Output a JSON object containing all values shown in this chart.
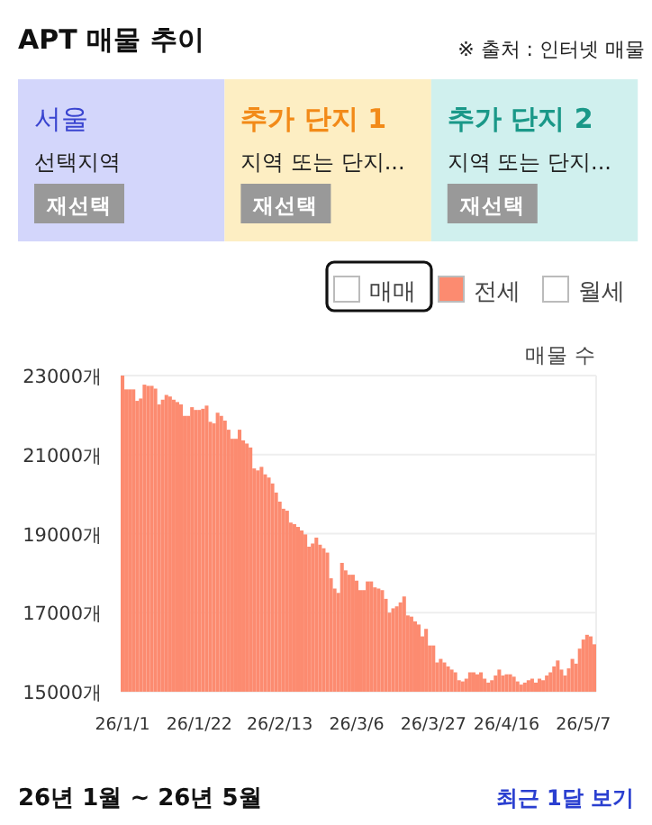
{
  "chart_data": {
    "type": "bar",
    "title": "APT 매물 추이",
    "ylabel": "매물 수",
    "annotations": [
      "※ 출처 : 인터넷 매물",
      "서울",
      "선택지역",
      "재선택",
      "추가 단지 1",
      "지역 또는 단지...",
      "재선택",
      "추가 단지 2",
      "지역 또는 단지...",
      "재선택",
      "매매",
      "월세",
      "26년 1월 ~ 26년 5월",
      "최근 1달 보기"
    ],
    "categories": [
      "26/1/1",
      null,
      null,
      null,
      null,
      null,
      null,
      null,
      null,
      null,
      null,
      null,
      null,
      null,
      null,
      null,
      null,
      null,
      null,
      null,
      null,
      "26/1/22",
      null,
      null,
      null,
      null,
      null,
      null,
      null,
      null,
      null,
      null,
      null,
      null,
      null,
      null,
      null,
      null,
      null,
      null,
      null,
      null,
      null,
      "26/2/13",
      null,
      null,
      null,
      null,
      null,
      null,
      null,
      null,
      null,
      null,
      null,
      null,
      null,
      null,
      null,
      null,
      null,
      null,
      null,
      null,
      "26/3/6",
      null,
      null,
      null,
      null,
      null,
      null,
      null,
      null,
      null,
      null,
      null,
      null,
      null,
      null,
      null,
      null,
      null,
      null,
      null,
      null,
      "26/3/27",
      null,
      null,
      null,
      null,
      null,
      null,
      null,
      null,
      null,
      null,
      null,
      null,
      null,
      null,
      null,
      null,
      null,
      null,
      null,
      "26/4/16",
      null,
      null,
      null,
      null,
      null,
      null,
      null,
      null,
      null,
      null,
      null,
      null,
      null,
      null,
      null,
      null,
      null,
      null,
      null,
      null,
      "26/5/7",
      null,
      null,
      null
    ],
    "series": [
      {
        "name": "전세",
        "color": "#fc8b70",
        "values": [
          23000,
          22650,
          22650,
          22650,
          22360,
          22420,
          22770,
          22740,
          22740,
          22670,
          22270,
          22390,
          22510,
          22470,
          22390,
          22330,
          22270,
          21980,
          21980,
          22200,
          22130,
          22130,
          22160,
          22240,
          21830,
          21790,
          22060,
          21980,
          21860,
          21630,
          21400,
          21400,
          21630,
          21360,
          21280,
          21180,
          20650,
          20600,
          20690,
          20500,
          20420,
          20270,
          20040,
          19810,
          19630,
          19580,
          19280,
          19240,
          19170,
          19080,
          18980,
          18670,
          18750,
          18900,
          18720,
          18630,
          18520,
          17870,
          17610,
          17500,
          18260,
          18070,
          17960,
          17960,
          17810,
          17570,
          17570,
          17790,
          17790,
          17640,
          17610,
          17570,
          17350,
          17000,
          17110,
          17160,
          17260,
          17410,
          16930,
          16900,
          16780,
          16700,
          16400,
          16590,
          16170,
          16170,
          15740,
          15830,
          15740,
          15640,
          15560,
          15490,
          15290,
          15260,
          15330,
          15490,
          15490,
          15440,
          15490,
          15330,
          15230,
          15290,
          15410,
          15560,
          15410,
          15440,
          15440,
          15380,
          15260,
          15180,
          15230,
          15290,
          15330,
          15230,
          15330,
          15290,
          15410,
          15490,
          15640,
          15790,
          15560,
          15410,
          15590,
          15830,
          15710,
          16090,
          16320,
          16440,
          16400,
          16200
        ]
      }
    ],
    "ylim": [
      15000,
      23000
    ],
    "yticks": [
      {
        "value": 15000,
        "label": "15000개"
      },
      {
        "value": 17000,
        "label": "17000개"
      },
      {
        "value": 19000,
        "label": "19000개"
      },
      {
        "value": 21000,
        "label": "21000개"
      },
      {
        "value": 23000,
        "label": "23000개"
      }
    ],
    "grid": "y",
    "legend": "top right"
  }
}
